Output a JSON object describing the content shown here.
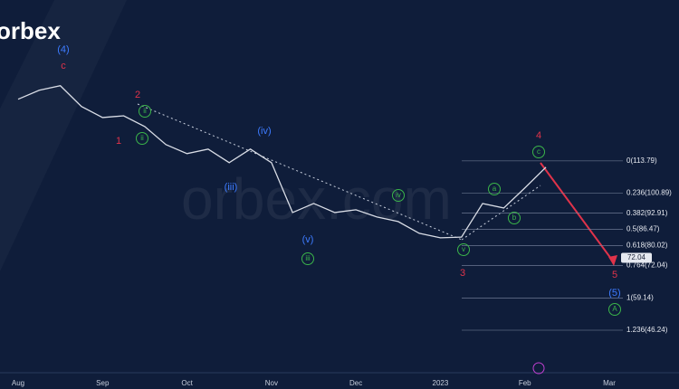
{
  "chart_data": {
    "type": "line",
    "logo": "orbex",
    "watermark": "orbex.com",
    "categories": [
      "Aug",
      null,
      null,
      null,
      "Sep",
      null,
      null,
      null,
      "Oct",
      null,
      null,
      null,
      "Nov",
      null,
      null,
      null,
      "Dec",
      null,
      null,
      null,
      "2023",
      null,
      null,
      null,
      "Feb",
      null,
      null,
      null,
      "Mar",
      null
    ],
    "series": [
      {
        "color": "#d9dde6",
        "values": [
          138.4,
          142,
          143.8,
          135.5,
          131.1,
          131.8,
          127.5,
          120.3,
          116.7,
          118.5,
          113.1,
          118.5,
          113.1,
          93.2,
          96.8,
          93.2,
          94.3,
          91.4,
          89.6,
          84.9,
          83.1,
          83.4,
          96.8,
          95,
          103,
          111.3,
          null,
          null,
          null,
          null
        ]
      }
    ],
    "ylim": [
      30,
      178
    ],
    "levels": [
      {
        "value": 113.79,
        "label": "0(113.79)"
      },
      {
        "value": 100.89,
        "label": "0.236(100.89)"
      },
      {
        "value": 92.91,
        "label": "0.382(92.91)"
      },
      {
        "value": 86.47,
        "label": "0.5(86.47)"
      },
      {
        "value": 80.02,
        "label": "0.618(80.02)"
      },
      {
        "value": 72.04,
        "label": "0.764(72.04)"
      },
      {
        "value": 59.14,
        "label": "1(59.14)"
      },
      {
        "value": 46.24,
        "label": "1.236(46.24)"
      }
    ],
    "price_tag": {
      "value": 72.04,
      "label": "72.04"
    },
    "annotations": [
      "(4)",
      "c",
      "2",
      "1",
      "ii",
      "ii",
      "(iv)",
      "(iii)",
      "(v)",
      "iii",
      "iv",
      "v",
      "3",
      "a",
      "b",
      "c",
      "4",
      "5",
      "(5)",
      "A"
    ]
  }
}
